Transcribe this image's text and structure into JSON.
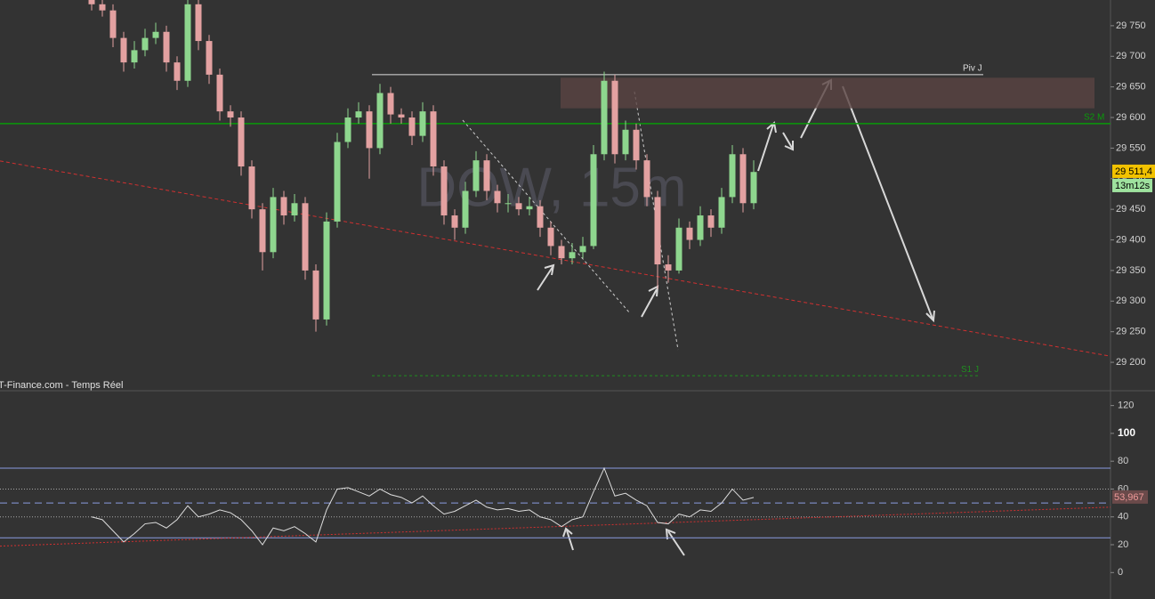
{
  "chart_data": [
    {
      "type": "candlestick",
      "title": "DOW, 15m",
      "source": "T-Finance.com - Temps Réel",
      "open": [
        29795,
        29785,
        29775,
        29730,
        29690,
        29710,
        29730,
        29740,
        29690,
        29660,
        29785,
        29725,
        29670,
        29610,
        29600,
        29520,
        29450,
        29380,
        29470,
        29440,
        29460,
        29350,
        29270,
        29430,
        29560,
        29600,
        29610,
        29550,
        29640,
        29605,
        29600,
        29570,
        29610,
        29520,
        29440,
        29420,
        29480,
        29530,
        29480,
        29460,
        29460,
        29450,
        29455,
        29420,
        29390,
        29370,
        29380,
        29390,
        29540,
        29660,
        29540,
        29580,
        29530,
        29470,
        29360,
        29350,
        29420,
        29400,
        29440,
        29420,
        29470,
        29540,
        29460
      ],
      "high": [
        29805,
        29795,
        29785,
        29740,
        29725,
        29745,
        29755,
        29750,
        29700,
        29795,
        29795,
        29735,
        29680,
        29620,
        29610,
        29530,
        29460,
        29485,
        29480,
        29475,
        29470,
        29360,
        29445,
        29575,
        29615,
        29625,
        29620,
        29655,
        29650,
        29615,
        29610,
        29625,
        29620,
        29530,
        29450,
        29495,
        29545,
        29540,
        29490,
        29475,
        29470,
        29470,
        29465,
        29430,
        29400,
        29395,
        29405,
        29555,
        29675,
        29670,
        29595,
        29590,
        29540,
        29480,
        29375,
        29435,
        29430,
        29455,
        29450,
        29485,
        29555,
        29550,
        29530
      ],
      "low": [
        29775,
        29765,
        29715,
        29675,
        29680,
        29700,
        29720,
        29675,
        29645,
        29650,
        29710,
        29655,
        29595,
        29585,
        29505,
        29435,
        29350,
        29370,
        29425,
        29430,
        29335,
        29250,
        29260,
        29420,
        29550,
        29590,
        29500,
        29540,
        29590,
        29590,
        29555,
        29560,
        29505,
        29425,
        29400,
        29410,
        29470,
        29465,
        29445,
        29445,
        29440,
        29440,
        29405,
        29375,
        29360,
        29360,
        29370,
        29385,
        29530,
        29525,
        29530,
        29515,
        29455,
        29320,
        29330,
        29345,
        29385,
        29390,
        29405,
        29410,
        29460,
        29445,
        29450
      ],
      "close": [
        29785,
        29775,
        29730,
        29690,
        29710,
        29730,
        29740,
        29690,
        29660,
        29785,
        29725,
        29670,
        29610,
        29600,
        29520,
        29450,
        29380,
        29470,
        29440,
        29460,
        29350,
        29270,
        29430,
        29560,
        29600,
        29610,
        29550,
        29640,
        29605,
        29600,
        29570,
        29610,
        29520,
        29440,
        29420,
        29480,
        29530,
        29480,
        29460,
        29460,
        29450,
        29455,
        29420,
        29390,
        29370,
        29380,
        29390,
        29540,
        29660,
        29540,
        29580,
        29530,
        29470,
        29360,
        29350,
        29420,
        29400,
        29440,
        29420,
        29470,
        29540,
        29460,
        29511
      ],
      "up_color": "#8ed68e",
      "down_color": "#e3a1a1",
      "ylim": [
        29155,
        29792
      ],
      "yticks": [
        {
          "value": 29750,
          "label": "29 750"
        },
        {
          "value": 29700,
          "label": "29 700"
        },
        {
          "value": 29650,
          "label": "29 650"
        },
        {
          "value": 29600,
          "label": "29 600"
        },
        {
          "value": 29550,
          "label": "29 550"
        },
        {
          "value": 29500,
          "label": "29 500"
        },
        {
          "value": 29450,
          "label": "29 450"
        },
        {
          "value": 29400,
          "label": "29 400"
        },
        {
          "value": 29350,
          "label": "29 350"
        },
        {
          "value": 29300,
          "label": "29 300"
        },
        {
          "value": 29250,
          "label": "29 250"
        },
        {
          "value": 29200,
          "label": "29 200"
        }
      ],
      "last_price": {
        "value": 29511.4,
        "label": "29 511,4"
      },
      "timer": "13m12s",
      "levels": [
        {
          "name": "Piv J",
          "value": 29670,
          "color": "#dddddd"
        },
        {
          "name": "S2 M",
          "value": 29590,
          "color": "#0a9a0a"
        },
        {
          "name": "S1 J",
          "value": 29178,
          "color": "#1f8f1f"
        }
      ],
      "zone": [
        29615,
        29665
      ],
      "trendline": [
        29529,
        29210
      ]
    },
    {
      "type": "line",
      "series": [
        {
          "name": "RSI",
          "color": "#dddddd",
          "values": [
            40,
            38,
            30,
            22,
            28,
            35,
            36,
            32,
            38,
            48,
            40,
            42,
            45,
            43,
            38,
            30,
            20,
            32,
            30,
            33,
            28,
            22,
            45,
            60,
            61,
            58,
            55,
            60,
            56,
            54,
            50,
            55,
            48,
            42,
            44,
            48,
            52,
            47,
            45,
            46,
            44,
            45,
            40,
            38,
            33,
            38,
            40,
            58,
            75,
            55,
            57,
            52,
            48,
            36,
            35,
            42,
            40,
            45,
            44,
            50,
            60,
            52,
            53.967
          ]
        }
      ],
      "value_labels": [
        {
          "value": 53.967,
          "label": "53,967"
        }
      ],
      "ylim": [
        -19,
        130
      ],
      "yticks": [
        120,
        100,
        80,
        60,
        40,
        20,
        0
      ],
      "levels": [
        75,
        60,
        50,
        40,
        25
      ],
      "trendline": [
        19,
        47
      ]
    }
  ]
}
